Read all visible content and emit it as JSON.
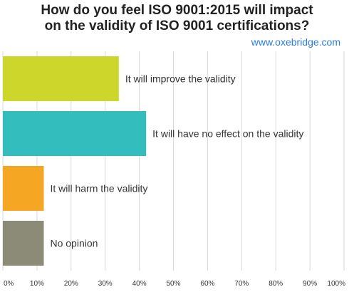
{
  "chart_data": {
    "type": "bar",
    "orientation": "horizontal",
    "title_lines": [
      "How do you feel ISO 9001:2015 will impact",
      "on the validity of ISO 9001 certifications?"
    ],
    "watermark": "www.oxebridge.com",
    "categories": [
      "It will improve the validity",
      "It will have no effect on the validity",
      "It will harm the validity",
      "No opinion"
    ],
    "values": [
      34,
      42,
      12,
      12
    ],
    "colors": [
      "#cdd62a",
      "#33bdbd",
      "#f5a623",
      "#8b8b78"
    ],
    "x_ticks": [
      "0%",
      "10%",
      "20%",
      "30%",
      "40%",
      "50%",
      "60%",
      "70%",
      "80%",
      "90%",
      "100%"
    ],
    "xlim": [
      0,
      100
    ],
    "grid": true
  }
}
